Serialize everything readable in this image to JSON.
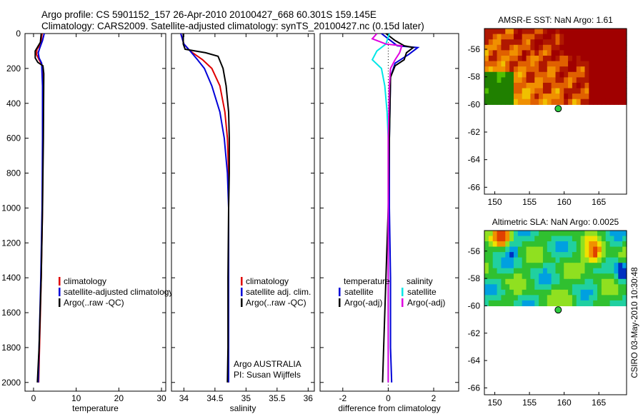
{
  "header": {
    "line1": "Argo profile: CS 5901152_157 26-Apr-2010 20100427_668 60.301S 159.145E",
    "line2": "Climatology: CARS2009. Satellite-adjusted climatology: synTS_20100427.nc (0.15d later)"
  },
  "footer_stamp": "CSIRO 03-May-2010 10:30:48",
  "chart_data": [
    {
      "id": "temperature",
      "type": "line",
      "xlabel": "temperature",
      "ylabel": "",
      "xlim": [
        -2,
        31
      ],
      "ylim": [
        2050,
        0
      ],
      "xticks": [
        0,
        10,
        20,
        30
      ],
      "yticks": [
        0,
        200,
        400,
        600,
        800,
        1000,
        1200,
        1400,
        1600,
        1800,
        2000
      ],
      "legend": {
        "position": "lower-right",
        "entries": [
          {
            "label": "climatology",
            "color": "#e00000"
          },
          {
            "label": "satellite-adjusted climatology",
            "color": "#0000d8"
          },
          {
            "label": "Argo(..raw -QC)",
            "color": "#000000"
          }
        ]
      },
      "series": [
        {
          "color": "#e00000",
          "points": [
            [
              2.0,
              0
            ],
            [
              1.7,
              60
            ],
            [
              0.8,
              90
            ],
            [
              0.7,
              120
            ],
            [
              1.3,
              150
            ],
            [
              2.0,
              180
            ],
            [
              2.2,
              300
            ],
            [
              2.2,
              600
            ],
            [
              2.1,
              1000
            ],
            [
              1.8,
              1400
            ],
            [
              1.4,
              1800
            ],
            [
              1.2,
              2000
            ]
          ]
        },
        {
          "color": "#0000d8",
          "points": [
            [
              2.5,
              0
            ],
            [
              2.1,
              40
            ],
            [
              1.5,
              80
            ],
            [
              1.1,
              110
            ],
            [
              1.3,
              140
            ],
            [
              1.9,
              170
            ],
            [
              2.1,
              300
            ],
            [
              2.1,
              600
            ],
            [
              2.0,
              1000
            ],
            [
              1.7,
              1400
            ],
            [
              1.3,
              1800
            ],
            [
              1.1,
              2000
            ]
          ]
        },
        {
          "color": "#000000",
          "points": [
            [
              1.8,
              0
            ],
            [
              1.6,
              50
            ],
            [
              0.4,
              100
            ],
            [
              0.4,
              140
            ],
            [
              1.0,
              165
            ],
            [
              2.2,
              185
            ],
            [
              2.4,
              230
            ],
            [
              2.3,
              600
            ],
            [
              2.1,
              1000
            ],
            [
              1.8,
              1400
            ],
            [
              1.3,
              1800
            ],
            [
              0.9,
              2000
            ]
          ]
        }
      ]
    },
    {
      "id": "salinity",
      "type": "line",
      "xlabel": "salinity",
      "ylabel": "",
      "xlim": [
        33.8,
        36.1
      ],
      "ylim": [
        2050,
        0
      ],
      "xticks": [
        34,
        34.5,
        35,
        35.5,
        36
      ],
      "yticks": [
        0,
        200,
        400,
        600,
        800,
        1000,
        1200,
        1400,
        1600,
        1800,
        2000
      ],
      "legend": {
        "position": "lower-right",
        "entries": [
          {
            "label": "climatology",
            "color": "#e00000"
          },
          {
            "label": "satellite adj. clim.",
            "color": "#0000d8"
          },
          {
            "label": "Argo(..raw -QC)",
            "color": "#000000"
          }
        ]
      },
      "annotation": {
        "line1": "Argo AUSTRALIA",
        "line2": "PI: Susan Wijffels"
      },
      "series": [
        {
          "color": "#e00000",
          "points": [
            [
              33.95,
              0
            ],
            [
              34.0,
              60
            ],
            [
              34.1,
              100
            ],
            [
              34.3,
              150
            ],
            [
              34.45,
              200
            ],
            [
              34.58,
              300
            ],
            [
              34.66,
              450
            ],
            [
              34.7,
              600
            ],
            [
              34.72,
              800
            ],
            [
              34.72,
              1000
            ],
            [
              34.72,
              1400
            ],
            [
              34.72,
              1800
            ],
            [
              34.72,
              2000
            ]
          ]
        },
        {
          "color": "#0000d8",
          "points": [
            [
              33.95,
              0
            ],
            [
              34.0,
              60
            ],
            [
              34.1,
              100
            ],
            [
              34.22,
              150
            ],
            [
              34.33,
              200
            ],
            [
              34.45,
              300
            ],
            [
              34.58,
              450
            ],
            [
              34.65,
              600
            ],
            [
              34.7,
              800
            ],
            [
              34.72,
              1000
            ],
            [
              34.72,
              1400
            ],
            [
              34.72,
              1800
            ],
            [
              34.72,
              2000
            ]
          ]
        },
        {
          "color": "#000000",
          "points": [
            [
              33.99,
              0
            ],
            [
              33.99,
              60
            ],
            [
              34.02,
              90
            ],
            [
              34.35,
              110
            ],
            [
              34.55,
              130
            ],
            [
              34.63,
              200
            ],
            [
              34.68,
              300
            ],
            [
              34.72,
              450
            ],
            [
              34.73,
              600
            ],
            [
              34.73,
              800
            ],
            [
              34.72,
              1000
            ],
            [
              34.71,
              1400
            ],
            [
              34.71,
              1800
            ],
            [
              34.7,
              2000
            ]
          ]
        }
      ]
    },
    {
      "id": "difference",
      "type": "line",
      "xlabel": "difference from climatology",
      "ylabel": "",
      "xlim": [
        -3,
        3.1
      ],
      "ylim": [
        2050,
        0
      ],
      "xticks": [
        -2,
        0,
        2
      ],
      "yticks": [
        0,
        200,
        400,
        600,
        800,
        1000,
        1200,
        1400,
        1600,
        1800,
        2000
      ],
      "legend": {
        "position": "lower-right",
        "columns": [
          {
            "title": "temperature",
            "entries": [
              {
                "label": "satellite",
                "color": "#0000d8"
              },
              {
                "label": "Argo(-adj)",
                "color": "#000000"
              }
            ]
          },
          {
            "title": "salinity",
            "entries": [
              {
                "label": "satellite",
                "color": "#00e6e6"
              },
              {
                "label": "Argo(-adj)",
                "color": "#e000e0"
              }
            ]
          }
        ]
      },
      "series": [
        {
          "color": "#0000d8",
          "points": [
            [
              -0.3,
              0
            ],
            [
              0.1,
              40
            ],
            [
              0.4,
              70
            ],
            [
              1.3,
              80
            ],
            [
              0.9,
              120
            ],
            [
              0.3,
              170
            ],
            [
              0.1,
              250
            ],
            [
              0.05,
              600
            ],
            [
              0.05,
              1000
            ],
            [
              0.1,
              1400
            ],
            [
              0.1,
              1800
            ],
            [
              0.15,
              2000
            ]
          ]
        },
        {
          "color": "#000000",
          "points": [
            [
              -0.1,
              0
            ],
            [
              0.3,
              40
            ],
            [
              0.7,
              70
            ],
            [
              1.1,
              80
            ],
            [
              0.8,
              110
            ],
            [
              0.7,
              150
            ],
            [
              0.3,
              185
            ],
            [
              0.1,
              250
            ],
            [
              0.05,
              600
            ],
            [
              0.0,
              1000
            ],
            [
              -0.1,
              1400
            ],
            [
              -0.2,
              1800
            ],
            [
              -0.25,
              2000
            ]
          ]
        },
        {
          "color": "#00e6e6",
          "points": [
            [
              0.05,
              0
            ],
            [
              -0.1,
              60
            ],
            [
              -0.5,
              100
            ],
            [
              -0.7,
              150
            ],
            [
              -0.3,
              200
            ],
            [
              -0.15,
              300
            ],
            [
              -0.05,
              450
            ],
            [
              0.0,
              600
            ],
            [
              0.0,
              1000
            ],
            [
              0.0,
              1400
            ],
            [
              0.0,
              1800
            ],
            [
              0.0,
              2000
            ]
          ]
        },
        {
          "color": "#e000e0",
          "points": [
            [
              -0.5,
              0
            ],
            [
              -0.7,
              30
            ],
            [
              -0.1,
              60
            ],
            [
              0.6,
              70
            ],
            [
              0.5,
              110
            ],
            [
              0.3,
              150
            ],
            [
              0.1,
              200
            ],
            [
              0.05,
              300
            ],
            [
              0.0,
              600
            ],
            [
              0.0,
              1000
            ],
            [
              0.0,
              1400
            ],
            [
              0.0,
              1800
            ],
            [
              0.0,
              2000
            ]
          ]
        }
      ]
    },
    {
      "id": "sst-map",
      "type": "heatmap",
      "title": "AMSR-E SST: NaN Argo: 1.61",
      "xlim": [
        148.5,
        169
      ],
      "ylim": [
        -66.5,
        -54.5
      ],
      "xticks": [
        150,
        155,
        160,
        165
      ],
      "yticks": [
        -56,
        -58,
        -60,
        -62,
        -64,
        -66
      ],
      "data_lat_range": [
        -60,
        -54.5
      ],
      "palette": [
        "#208000",
        "#50c000",
        "#b8e800",
        "#f0c000",
        "#f09000",
        "#e06000",
        "#b01800",
        "#a00000"
      ],
      "argo_position": {
        "lon": 159.145,
        "lat": -60.301
      },
      "marker_color": "#2ecc40"
    },
    {
      "id": "sla-map",
      "type": "heatmap",
      "title": "Altimetric SLA: NaN Argo: 0.0025",
      "xlim": [
        148.5,
        169
      ],
      "ylim": [
        -66.5,
        -54.5
      ],
      "xticks": [
        150,
        155,
        160,
        165
      ],
      "yticks": [
        -56,
        -58,
        -60,
        -62,
        -64,
        -66
      ],
      "data_lat_range": [
        -60,
        -54.5
      ],
      "palette": [
        "#0030c0",
        "#00a0e0",
        "#20d0a0",
        "#30c030",
        "#90e020",
        "#f0e000",
        "#f09000",
        "#e04000"
      ],
      "argo_position": {
        "lon": 159.145,
        "lat": -60.301
      },
      "marker_color": "#2ecc40"
    }
  ]
}
